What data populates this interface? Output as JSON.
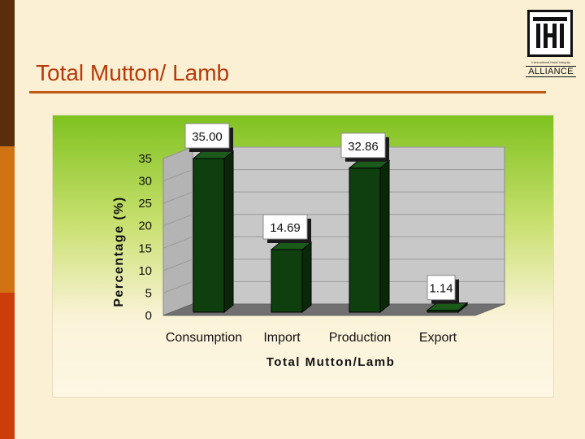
{
  "slide": {
    "title": "Total Mutton/ Lamb"
  },
  "logo": {
    "mark": "IHI",
    "small_text": "International Halal Integrity",
    "alliance": "ALLIANCE"
  },
  "colors": {
    "bar": "#0f3f0f",
    "bar_side": "#082808",
    "accent": "#b83a08"
  },
  "chart_data": {
    "type": "bar",
    "categories": [
      "Consumption",
      "Import",
      "Production",
      "Export"
    ],
    "values": [
      35.0,
      14.69,
      32.86,
      1.14
    ],
    "data_labels": [
      "35.00",
      "14.69",
      "32.86",
      "1.14"
    ],
    "title": "",
    "xlabel": "Total Mutton/Lamb",
    "ylabel": "Percentage (%)",
    "ylim": [
      0,
      35
    ],
    "yticks": [
      0,
      5,
      10,
      15,
      20,
      25,
      30,
      35
    ],
    "grid": true,
    "legend": "none"
  }
}
